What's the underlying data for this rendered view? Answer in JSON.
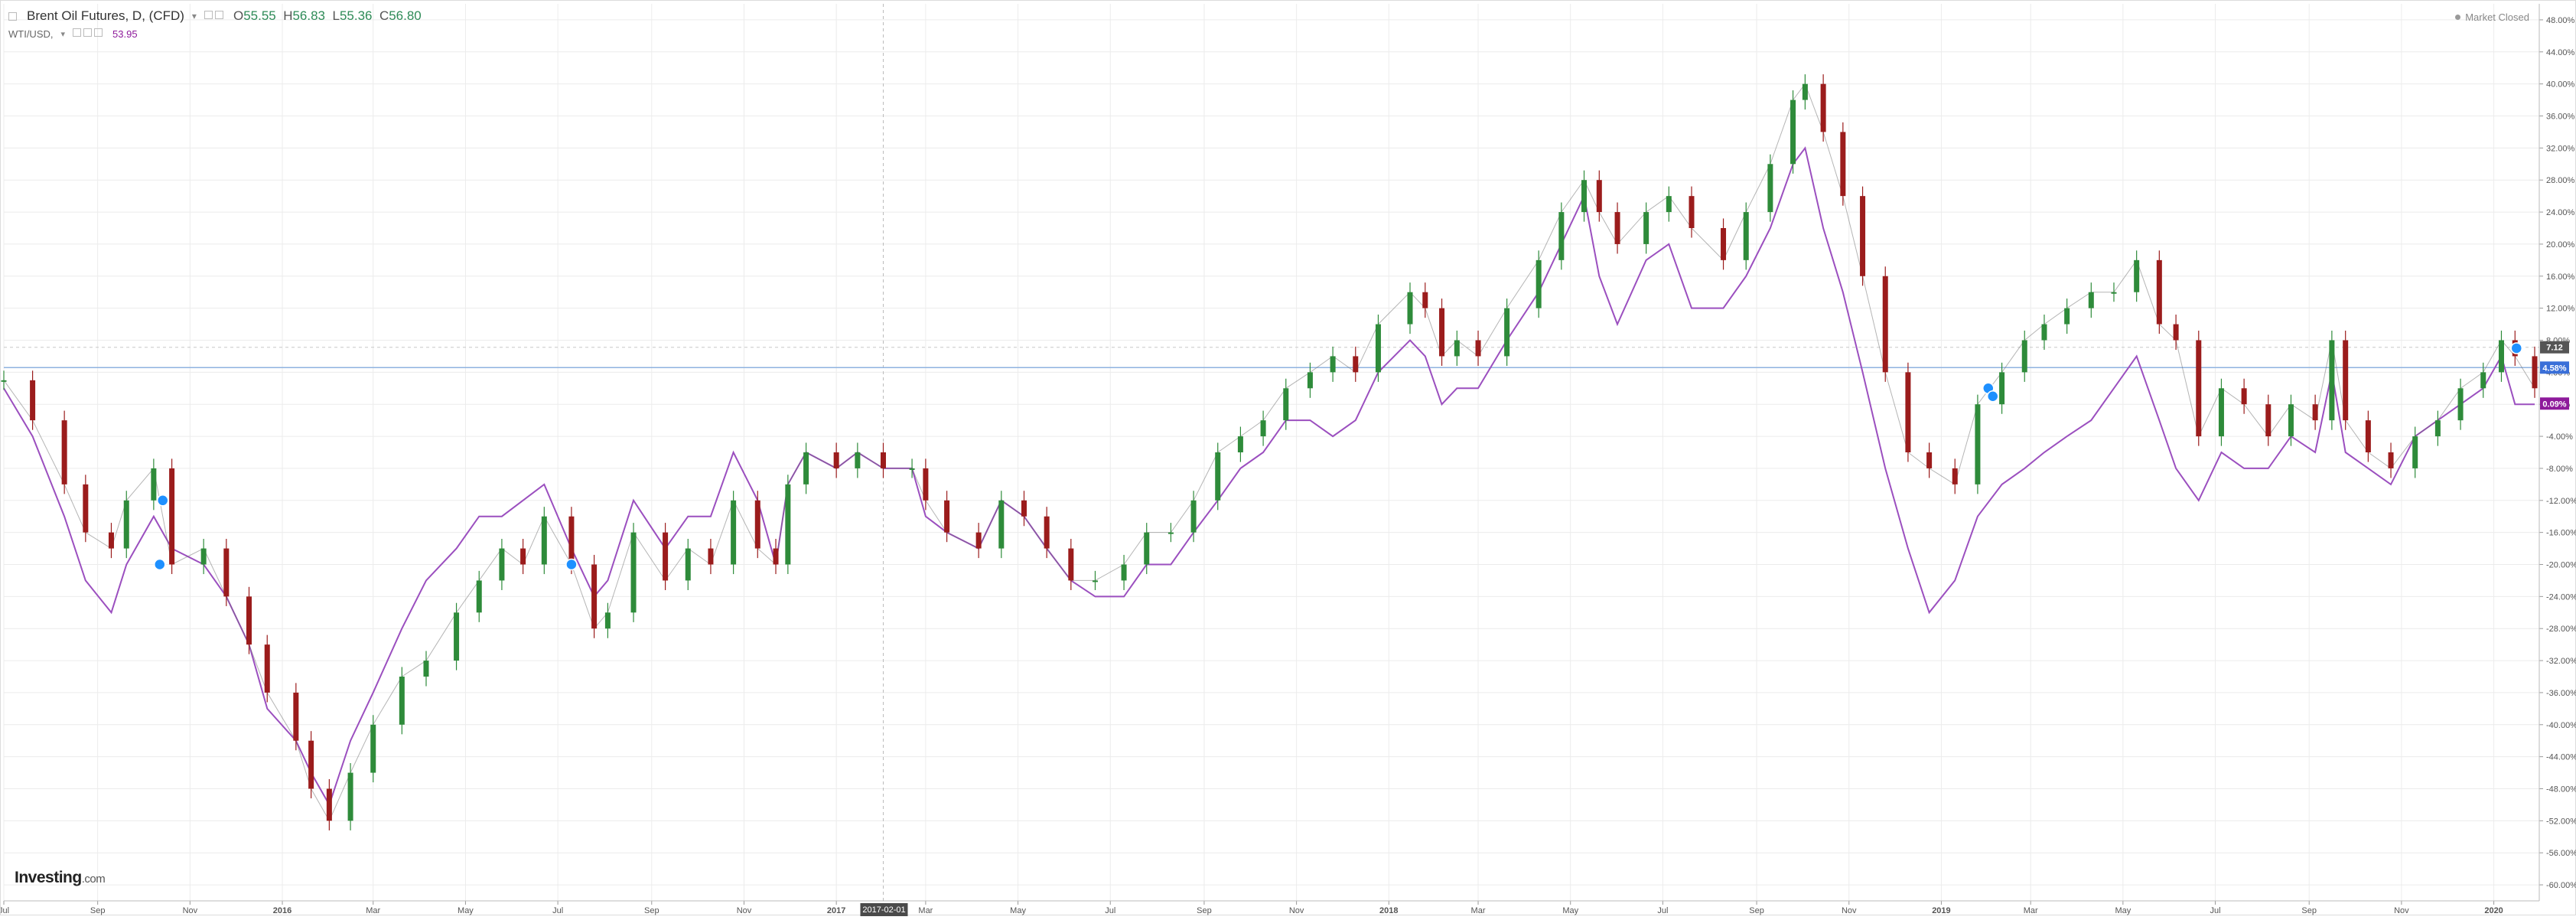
{
  "header": {
    "title": "Brent Oil Futures, D, (CFD)",
    "ohlc": {
      "open_label": "O",
      "open": "55.55",
      "high_label": "H",
      "high": "56.83",
      "low_label": "L",
      "low": "55.36",
      "close_label": "C",
      "close": "56.80"
    },
    "secondary_label": "WTI/USD,",
    "secondary_value": "53.95",
    "market_status": "Market Closed",
    "logo_main": "Investing",
    "logo_suffix": ".com"
  },
  "colors": {
    "up": "#2e8b3a",
    "down": "#9b1c1c",
    "wti_line": "#9b4fbf",
    "grid": "#ececec",
    "baseline": "#8fb3e0",
    "label_gray": "#555555",
    "label_blue": "#3a6fd8",
    "label_purple": "#8e1a9b"
  },
  "chart_data": {
    "type": "line",
    "y_unit": "percent change",
    "ylim": [
      -62,
      50
    ],
    "y_ticks": [
      "48.00%",
      "44.00%",
      "40.00%",
      "36.00%",
      "32.00%",
      "28.00%",
      "24.00%",
      "20.00%",
      "16.00%",
      "12.00%",
      "8.00%",
      "4.00%",
      "0.00%",
      "-4.00%",
      "-8.00%",
      "-12.00%",
      "-16.00%",
      "-20.00%",
      "-24.00%",
      "-28.00%",
      "-32.00%",
      "-36.00%",
      "-40.00%",
      "-44.00%",
      "-48.00%",
      "-52.00%",
      "-56.00%",
      "-60.00%"
    ],
    "y_tick_values": [
      48,
      44,
      40,
      36,
      32,
      28,
      24,
      20,
      16,
      12,
      8,
      4,
      0,
      -4,
      -8,
      -12,
      -16,
      -20,
      -24,
      -28,
      -32,
      -36,
      -40,
      -44,
      -48,
      -52,
      -56,
      -60
    ],
    "x_ticks": [
      "Jul",
      "Sep",
      "Nov",
      "2016",
      "Mar",
      "May",
      "Jul",
      "Sep",
      "Nov",
      "2017",
      "Mar",
      "May",
      "Jul",
      "Sep",
      "Nov",
      "2018",
      "Mar",
      "May",
      "Jul",
      "Sep",
      "Nov",
      "2019",
      "Mar",
      "May",
      "Jul",
      "Sep",
      "Nov",
      "2020"
    ],
    "x_tick_dates": [
      "2015-07-01",
      "2015-09-01",
      "2015-11-01",
      "2016-01-01",
      "2016-03-01",
      "2016-05-01",
      "2016-07-01",
      "2016-09-01",
      "2016-11-01",
      "2017-01-01",
      "2017-03-01",
      "2017-05-01",
      "2017-07-01",
      "2017-09-01",
      "2017-11-01",
      "2018-01-01",
      "2018-03-01",
      "2018-05-01",
      "2018-07-01",
      "2018-09-01",
      "2018-11-01",
      "2019-01-01",
      "2019-03-01",
      "2019-05-01",
      "2019-07-01",
      "2019-09-01",
      "2019-11-01",
      "2020-01-01"
    ],
    "x_range": [
      "2015-07-01",
      "2020-01-28"
    ],
    "crosshair_date_label": "2017-02-01",
    "grid": true,
    "right_labels": [
      {
        "text": "7.12",
        "value": 7.12
      },
      {
        "text": "4.58%",
        "value": 4.58
      },
      {
        "text": "0.09%",
        "value": 0.09
      }
    ],
    "series": [
      {
        "name": "Brent Oil Futures, D, (CFD)",
        "kind": "candlestick",
        "dates": [
          "2015-07-01",
          "2015-07-20",
          "2015-08-10",
          "2015-08-24",
          "2015-09-10",
          "2015-09-20",
          "2015-10-08",
          "2015-10-20",
          "2015-11-10",
          "2015-11-25",
          "2015-12-10",
          "2015-12-22",
          "2016-01-10",
          "2016-01-20",
          "2016-02-01",
          "2016-02-15",
          "2016-03-01",
          "2016-03-20",
          "2016-04-05",
          "2016-04-25",
          "2016-05-10",
          "2016-05-25",
          "2016-06-08",
          "2016-06-22",
          "2016-07-10",
          "2016-07-25",
          "2016-08-03",
          "2016-08-20",
          "2016-09-10",
          "2016-09-25",
          "2016-10-10",
          "2016-10-25",
          "2016-11-10",
          "2016-11-22",
          "2016-11-30",
          "2016-12-12",
          "2017-01-01",
          "2017-01-15",
          "2017-02-01",
          "2017-02-20",
          "2017-03-01",
          "2017-03-15",
          "2017-04-05",
          "2017-04-20",
          "2017-05-05",
          "2017-05-20",
          "2017-06-05",
          "2017-06-21",
          "2017-07-10",
          "2017-07-25",
          "2017-08-10",
          "2017-08-25",
          "2017-09-10",
          "2017-09-25",
          "2017-10-10",
          "2017-10-25",
          "2017-11-10",
          "2017-11-25",
          "2017-12-10",
          "2017-12-25",
          "2018-01-15",
          "2018-01-25",
          "2018-02-05",
          "2018-02-15",
          "2018-03-01",
          "2018-03-20",
          "2018-04-10",
          "2018-04-25",
          "2018-05-10",
          "2018-05-20",
          "2018-06-01",
          "2018-06-20",
          "2018-07-05",
          "2018-07-20",
          "2018-08-10",
          "2018-08-25",
          "2018-09-10",
          "2018-09-25",
          "2018-10-03",
          "2018-10-15",
          "2018-10-28",
          "2018-11-10",
          "2018-11-25",
          "2018-12-10",
          "2018-12-24",
          "2019-01-10",
          "2019-01-25",
          "2019-02-10",
          "2019-02-25",
          "2019-03-10",
          "2019-03-25",
          "2019-04-10",
          "2019-04-25",
          "2019-05-10",
          "2019-05-25",
          "2019-06-05",
          "2019-06-20",
          "2019-07-05",
          "2019-07-20",
          "2019-08-05",
          "2019-08-20",
          "2019-09-05",
          "2019-09-16",
          "2019-09-25",
          "2019-10-10",
          "2019-10-25",
          "2019-11-10",
          "2019-11-25",
          "2019-12-10",
          "2019-12-25",
          "2020-01-06",
          "2020-01-15",
          "2020-01-28"
        ],
        "values": [
          3,
          -2,
          -10,
          -16,
          -18,
          -12,
          -8,
          -20,
          -18,
          -24,
          -30,
          -36,
          -42,
          -48,
          -52,
          -46,
          -40,
          -34,
          -32,
          -26,
          -22,
          -18,
          -20,
          -14,
          -20,
          -28,
          -26,
          -16,
          -22,
          -18,
          -20,
          -12,
          -18,
          -20,
          -10,
          -6,
          -8,
          -6,
          -8,
          -8,
          -12,
          -16,
          -18,
          -12,
          -14,
          -18,
          -22,
          -22,
          -20,
          -16,
          -16,
          -12,
          -6,
          -4,
          -2,
          2,
          4,
          6,
          4,
          10,
          14,
          12,
          6,
          8,
          6,
          12,
          18,
          24,
          28,
          24,
          20,
          24,
          26,
          22,
          18,
          24,
          30,
          38,
          40,
          34,
          26,
          16,
          4,
          -6,
          -8,
          -10,
          0,
          4,
          8,
          10,
          12,
          14,
          14,
          18,
          10,
          8,
          -4,
          2,
          0,
          -4,
          0,
          -2,
          8,
          -2,
          -6,
          -8,
          -4,
          -2,
          2,
          4,
          8,
          6,
          2
        ]
      },
      {
        "name": "WTI/USD,",
        "kind": "line",
        "dates": [
          "2015-07-01",
          "2015-07-20",
          "2015-08-10",
          "2015-08-24",
          "2015-09-10",
          "2015-09-20",
          "2015-10-08",
          "2015-10-20",
          "2015-11-10",
          "2015-11-25",
          "2015-12-10",
          "2015-12-22",
          "2016-01-10",
          "2016-01-20",
          "2016-02-01",
          "2016-02-15",
          "2016-03-01",
          "2016-03-20",
          "2016-04-05",
          "2016-04-25",
          "2016-05-10",
          "2016-05-25",
          "2016-06-08",
          "2016-06-22",
          "2016-07-10",
          "2016-07-25",
          "2016-08-03",
          "2016-08-20",
          "2016-09-10",
          "2016-09-25",
          "2016-10-10",
          "2016-10-25",
          "2016-11-10",
          "2016-11-22",
          "2016-11-30",
          "2016-12-12",
          "2017-01-01",
          "2017-01-15",
          "2017-02-01",
          "2017-02-20",
          "2017-03-01",
          "2017-03-15",
          "2017-04-05",
          "2017-04-20",
          "2017-05-05",
          "2017-05-20",
          "2017-06-05",
          "2017-06-21",
          "2017-07-10",
          "2017-07-25",
          "2017-08-10",
          "2017-08-25",
          "2017-09-10",
          "2017-09-25",
          "2017-10-10",
          "2017-10-25",
          "2017-11-10",
          "2017-11-25",
          "2017-12-10",
          "2017-12-25",
          "2018-01-15",
          "2018-01-25",
          "2018-02-05",
          "2018-02-15",
          "2018-03-01",
          "2018-03-20",
          "2018-04-10",
          "2018-04-25",
          "2018-05-10",
          "2018-05-20",
          "2018-06-01",
          "2018-06-20",
          "2018-07-05",
          "2018-07-20",
          "2018-08-10",
          "2018-08-25",
          "2018-09-10",
          "2018-09-25",
          "2018-10-03",
          "2018-10-15",
          "2018-10-28",
          "2018-11-10",
          "2018-11-25",
          "2018-12-10",
          "2018-12-24",
          "2019-01-10",
          "2019-01-25",
          "2019-02-10",
          "2019-02-25",
          "2019-03-10",
          "2019-03-25",
          "2019-04-10",
          "2019-04-25",
          "2019-05-10",
          "2019-05-25",
          "2019-06-05",
          "2019-06-20",
          "2019-07-05",
          "2019-07-20",
          "2019-08-05",
          "2019-08-20",
          "2019-09-05",
          "2019-09-16",
          "2019-09-25",
          "2019-10-10",
          "2019-10-25",
          "2019-11-10",
          "2019-11-25",
          "2019-12-10",
          "2019-12-25",
          "2020-01-06",
          "2020-01-15",
          "2020-01-28"
        ],
        "values": [
          2,
          -4,
          -14,
          -22,
          -26,
          -20,
          -14,
          -18,
          -20,
          -24,
          -30,
          -38,
          -42,
          -46,
          -50,
          -42,
          -36,
          -28,
          -22,
          -18,
          -14,
          -14,
          -12,
          -10,
          -18,
          -24,
          -22,
          -12,
          -18,
          -14,
          -14,
          -6,
          -12,
          -20,
          -10,
          -6,
          -8,
          -6,
          -8,
          -8,
          -14,
          -16,
          -18,
          -12,
          -14,
          -18,
          -22,
          -24,
          -24,
          -20,
          -20,
          -16,
          -12,
          -8,
          -6,
          -2,
          -2,
          -4,
          -2,
          4,
          8,
          6,
          0,
          2,
          2,
          8,
          14,
          20,
          26,
          16,
          10,
          18,
          20,
          12,
          12,
          16,
          22,
          30,
          32,
          22,
          14,
          4,
          -8,
          -18,
          -26,
          -22,
          -14,
          -10,
          -8,
          -6,
          -4,
          -2,
          2,
          6,
          -2,
          -8,
          -12,
          -6,
          -8,
          -8,
          -4,
          -6,
          4,
          -6,
          -8,
          -10,
          -4,
          -2,
          0,
          2,
          6,
          0,
          0
        ]
      }
    ]
  }
}
